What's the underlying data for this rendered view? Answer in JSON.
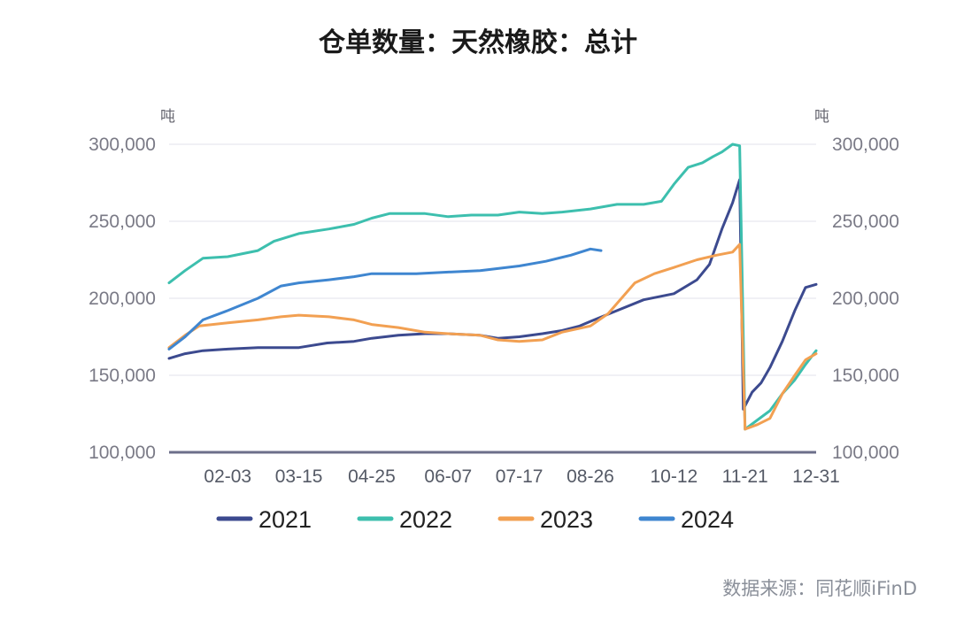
{
  "chart_data": {
    "type": "line",
    "title": "仓单数量：天然橡胶：总计",
    "y_unit_left": "吨",
    "y_unit_right": "吨",
    "ylim": [
      100000,
      300000
    ],
    "y_ticks": [
      100000,
      150000,
      200000,
      250000,
      300000
    ],
    "y_tick_labels": [
      "100,000",
      "150,000",
      "200,000",
      "250,000",
      "300,000"
    ],
    "x_tick_labels": [
      "02-03",
      "03-15",
      "04-25",
      "06-07",
      "07-17",
      "08-26",
      "10-12",
      "11-21",
      "12-31"
    ],
    "grid": true,
    "legend_position": "bottom",
    "source": "数据来源：同花顺iFinD",
    "series": [
      {
        "name": "2021",
        "color": "#3c4a8f",
        "points": [
          [
            "01-01",
            161000
          ],
          [
            "01-10",
            164000
          ],
          [
            "01-20",
            166000
          ],
          [
            "02-03",
            167000
          ],
          [
            "02-20",
            168000
          ],
          [
            "03-15",
            168000
          ],
          [
            "03-31",
            171000
          ],
          [
            "04-15",
            172000
          ],
          [
            "04-25",
            174000
          ],
          [
            "05-10",
            176000
          ],
          [
            "05-25",
            177000
          ],
          [
            "06-07",
            177000
          ],
          [
            "06-25",
            176000
          ],
          [
            "07-05",
            174000
          ],
          [
            "07-17",
            175000
          ],
          [
            "07-30",
            177000
          ],
          [
            "08-10",
            179000
          ],
          [
            "08-20",
            182000
          ],
          [
            "08-26",
            185000
          ],
          [
            "09-10",
            192000
          ],
          [
            "09-25",
            199000
          ],
          [
            "10-12",
            203000
          ],
          [
            "10-25",
            212000
          ],
          [
            "11-01",
            222000
          ],
          [
            "11-08",
            245000
          ],
          [
            "11-14",
            262000
          ],
          [
            "11-18",
            277000
          ],
          [
            "11-20",
            128000
          ],
          [
            "11-25",
            139000
          ],
          [
            "11-30",
            145000
          ],
          [
            "12-05",
            155000
          ],
          [
            "12-12",
            172000
          ],
          [
            "12-19",
            192000
          ],
          [
            "12-25",
            207000
          ],
          [
            "12-31",
            209000
          ]
        ]
      },
      {
        "name": "2022",
        "color": "#3dbfae",
        "points": [
          [
            "01-01",
            210000
          ],
          [
            "01-10",
            218000
          ],
          [
            "01-20",
            226000
          ],
          [
            "02-03",
            227000
          ],
          [
            "02-20",
            231000
          ],
          [
            "03-01",
            237000
          ],
          [
            "03-15",
            242000
          ],
          [
            "04-01",
            245000
          ],
          [
            "04-15",
            248000
          ],
          [
            "04-25",
            252000
          ],
          [
            "05-05",
            255000
          ],
          [
            "05-25",
            255000
          ],
          [
            "06-07",
            253000
          ],
          [
            "06-20",
            254000
          ],
          [
            "07-05",
            254000
          ],
          [
            "07-17",
            256000
          ],
          [
            "07-30",
            255000
          ],
          [
            "08-10",
            256000
          ],
          [
            "08-26",
            258000
          ],
          [
            "09-10",
            261000
          ],
          [
            "09-25",
            261000
          ],
          [
            "10-05",
            263000
          ],
          [
            "10-12",
            274000
          ],
          [
            "10-20",
            285000
          ],
          [
            "10-28",
            288000
          ],
          [
            "11-03",
            292000
          ],
          [
            "11-08",
            295000
          ],
          [
            "11-14",
            300000
          ],
          [
            "11-18",
            299000
          ],
          [
            "11-21",
            115000
          ],
          [
            "11-28",
            121000
          ],
          [
            "12-05",
            127000
          ],
          [
            "12-12",
            138000
          ],
          [
            "12-19",
            147000
          ],
          [
            "12-25",
            157000
          ],
          [
            "12-31",
            166000
          ]
        ]
      },
      {
        "name": "2023",
        "color": "#f2a052",
        "points": [
          [
            "01-01",
            168000
          ],
          [
            "01-10",
            176000
          ],
          [
            "01-18",
            182000
          ],
          [
            "02-03",
            184000
          ],
          [
            "02-20",
            186000
          ],
          [
            "03-05",
            188000
          ],
          [
            "03-15",
            189000
          ],
          [
            "04-01",
            188000
          ],
          [
            "04-15",
            186000
          ],
          [
            "04-25",
            183000
          ],
          [
            "05-10",
            181000
          ],
          [
            "05-25",
            178000
          ],
          [
            "06-07",
            177000
          ],
          [
            "06-25",
            176000
          ],
          [
            "07-05",
            173000
          ],
          [
            "07-17",
            172000
          ],
          [
            "07-30",
            173000
          ],
          [
            "08-10",
            178000
          ],
          [
            "08-26",
            182000
          ],
          [
            "09-05",
            190000
          ],
          [
            "09-20",
            210000
          ],
          [
            "10-01",
            216000
          ],
          [
            "10-12",
            220000
          ],
          [
            "10-25",
            225000
          ],
          [
            "11-05",
            228000
          ],
          [
            "11-14",
            230000
          ],
          [
            "11-18",
            235000
          ],
          [
            "11-21",
            115000
          ],
          [
            "11-28",
            118000
          ],
          [
            "12-05",
            122000
          ],
          [
            "12-12",
            138000
          ],
          [
            "12-19",
            150000
          ],
          [
            "12-25",
            160000
          ],
          [
            "12-31",
            164000
          ]
        ]
      },
      {
        "name": "2024",
        "color": "#3f86d0",
        "points": [
          [
            "01-01",
            167000
          ],
          [
            "01-10",
            175000
          ],
          [
            "01-20",
            186000
          ],
          [
            "02-03",
            192000
          ],
          [
            "02-20",
            200000
          ],
          [
            "03-05",
            208000
          ],
          [
            "03-15",
            210000
          ],
          [
            "04-01",
            212000
          ],
          [
            "04-15",
            214000
          ],
          [
            "04-25",
            216000
          ],
          [
            "05-20",
            216000
          ],
          [
            "06-07",
            217000
          ],
          [
            "06-25",
            218000
          ],
          [
            "07-17",
            221000
          ],
          [
            "08-01",
            224000
          ],
          [
            "08-15",
            228000
          ],
          [
            "08-26",
            232000
          ],
          [
            "09-01",
            231000
          ]
        ]
      }
    ]
  }
}
